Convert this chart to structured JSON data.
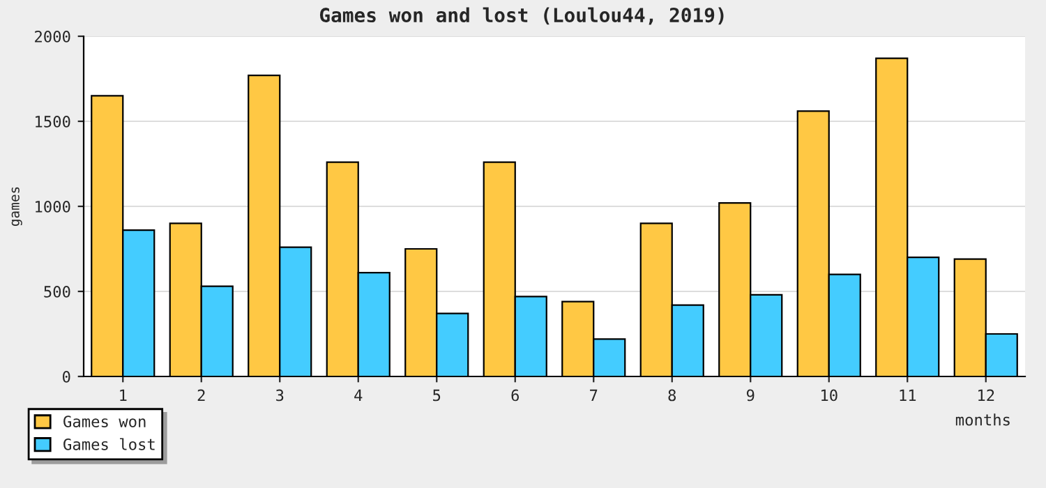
{
  "chart_data": {
    "type": "bar",
    "title": "Games won and lost (Loulou44, 2019)",
    "xlabel": "months",
    "ylabel": "games",
    "categories": [
      "1",
      "2",
      "3",
      "4",
      "5",
      "6",
      "7",
      "8",
      "9",
      "10",
      "11",
      "12"
    ],
    "series": [
      {
        "name": "Games won",
        "color": "#ffc844",
        "values": [
          1650,
          900,
          1770,
          1260,
          750,
          1260,
          440,
          900,
          1020,
          1560,
          1870,
          690
        ]
      },
      {
        "name": "Games lost",
        "color": "#44ccff",
        "values": [
          860,
          530,
          760,
          610,
          370,
          470,
          220,
          420,
          480,
          600,
          700,
          250
        ]
      }
    ],
    "ylim": [
      0,
      2000
    ],
    "yticks": [
      0,
      500,
      1000,
      1500,
      2000
    ],
    "grid": "y",
    "legend": "bottom left"
  }
}
